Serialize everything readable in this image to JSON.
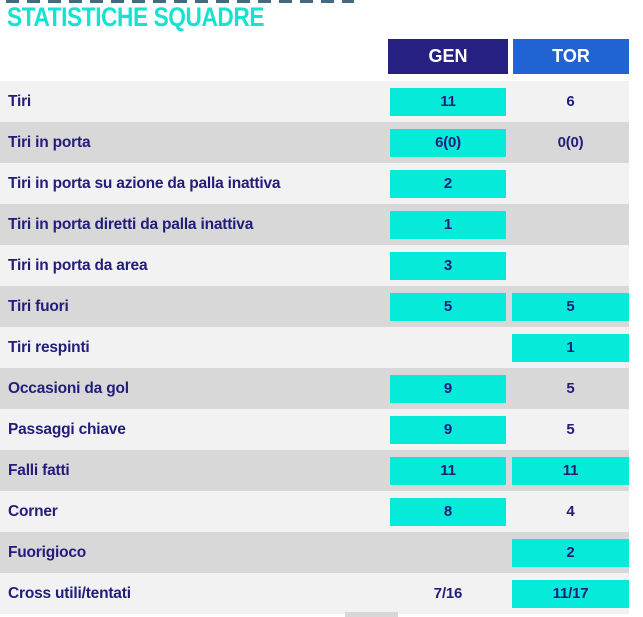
{
  "title": "STATISTICHE SQUADRE",
  "colors": {
    "title_cyan": "#14e3d2",
    "highlight_cyan": "#06ead9",
    "gen_header_navy": "#262083",
    "tor_header_blue": "#2263d3",
    "text_navy": "#221c7a",
    "row_light": "#f2f2f2",
    "row_gray": "#d8d8d8"
  },
  "table": {
    "columns": [
      {
        "id": "gen",
        "label": "GEN"
      },
      {
        "id": "tor",
        "label": "TOR"
      }
    ],
    "rows": [
      {
        "label": "Tiri",
        "gen": {
          "value": "11",
          "highlight": true
        },
        "tor": {
          "value": "6",
          "highlight": false
        }
      },
      {
        "label": "Tiri in porta",
        "gen": {
          "value": "6(0)",
          "highlight": true
        },
        "tor": {
          "value": "0(0)",
          "highlight": false
        }
      },
      {
        "label": "Tiri in porta su azione da palla inattiva",
        "gen": {
          "value": "2",
          "highlight": true
        },
        "tor": {
          "value": "",
          "highlight": false
        }
      },
      {
        "label": "Tiri in porta diretti da palla inattiva",
        "gen": {
          "value": "1",
          "highlight": true
        },
        "tor": {
          "value": "",
          "highlight": false
        }
      },
      {
        "label": "Tiri in porta da area",
        "gen": {
          "value": "3",
          "highlight": true
        },
        "tor": {
          "value": "",
          "highlight": false
        }
      },
      {
        "label": "Tiri fuori",
        "gen": {
          "value": "5",
          "highlight": true
        },
        "tor": {
          "value": "5",
          "highlight": true
        }
      },
      {
        "label": "Tiri respinti",
        "gen": {
          "value": "",
          "highlight": false
        },
        "tor": {
          "value": "1",
          "highlight": true
        }
      },
      {
        "label": "Occasioni da gol",
        "gen": {
          "value": "9",
          "highlight": true
        },
        "tor": {
          "value": "5",
          "highlight": false
        }
      },
      {
        "label": "Passaggi chiave",
        "gen": {
          "value": "9",
          "highlight": true
        },
        "tor": {
          "value": "5",
          "highlight": false
        }
      },
      {
        "label": "Falli fatti",
        "gen": {
          "value": "11",
          "highlight": true
        },
        "tor": {
          "value": "11",
          "highlight": true
        }
      },
      {
        "label": "Corner",
        "gen": {
          "value": "8",
          "highlight": true
        },
        "tor": {
          "value": "4",
          "highlight": false
        }
      },
      {
        "label": "Fuorigioco",
        "gen": {
          "value": "",
          "highlight": false
        },
        "tor": {
          "value": "2",
          "highlight": true
        }
      },
      {
        "label": "Cross utili/tentati",
        "gen": {
          "value": "7/16",
          "highlight": false
        },
        "tor": {
          "value": "11/17",
          "highlight": true
        }
      }
    ]
  }
}
